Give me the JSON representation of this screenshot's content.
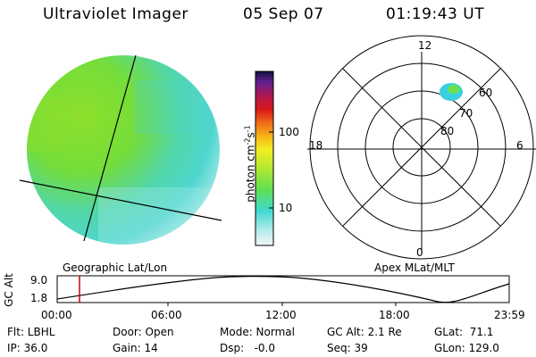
{
  "header": {
    "title": "Ultraviolet Imager",
    "date": "05 Sep 07",
    "time": "01:19:43 UT"
  },
  "colorbar": {
    "unit": "photon cm",
    "unit_sup1": "-2",
    "unit_s": "s",
    "unit_sup2": "-1",
    "ticks": [
      "100",
      "10"
    ]
  },
  "panels": {
    "left_label": "Geographic Lat/Lon",
    "right_label": "Apex MLat/MLT"
  },
  "polar": {
    "mlt_labels": {
      "top": "12",
      "bottom": "0",
      "left": "18",
      "right": "6"
    },
    "lat_labels": [
      "60",
      "70",
      "80"
    ]
  },
  "altitude_plot": {
    "ylabel": "GC Alt",
    "yticks": [
      "9.0",
      "1.8"
    ],
    "xticks": [
      "00:00",
      "06:00",
      "12:00",
      "18:00",
      "23:59"
    ],
    "marker_time": "01:19:43",
    "line_color": "#cc0000"
  },
  "info": {
    "row1": {
      "flt": "Flt: LBHL",
      "door": "Door: Open",
      "mode": "Mode: Normal",
      "gcalt": "GC Alt: 2.1 Re",
      "glat": "GLat:  71.1"
    },
    "row2": {
      "ip": "IP: 36.0",
      "gain": "Gain: 14",
      "dsp": "Dsp:   -0.0",
      "seq": "Seq: 39",
      "glon": "GLon: 129.0"
    }
  },
  "colors": {
    "disk_green": "#7ee02e",
    "disk_cyan": "#4fd6cf",
    "disk_pale": "#c8f0ee",
    "patch_cyan": "#38d0e0"
  }
}
